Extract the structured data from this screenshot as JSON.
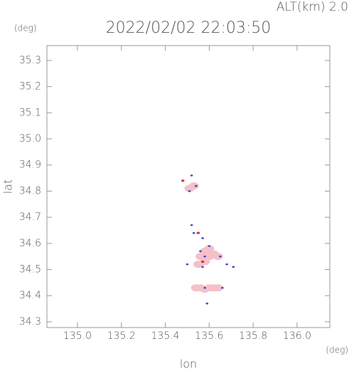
{
  "chart_data": {
    "type": "scatter",
    "title": "2022/02/02 22:03:50",
    "subtitle": "ALT(km) 2.0",
    "y_unit": "(deg)",
    "x_unit": "(deg)",
    "xlabel": "lon",
    "ylabel": "lat",
    "xlim": [
      134.861,
      136.149
    ],
    "ylim": [
      34.278,
      35.357
    ],
    "xticks": [
      {
        "value": 135.0,
        "label": "135.0"
      },
      135.2,
      135.4,
      135.6,
      135.8,
      {
        "value": 136.0,
        "label": "136.0"
      }
    ],
    "yticks": [
      34.3,
      34.4,
      34.5,
      34.6,
      34.7,
      34.8,
      34.9,
      {
        "value": 35.0,
        "label": "35.0"
      },
      35.1,
      35.2,
      35.3
    ],
    "series": [
      {
        "color": "#f5c0c8",
        "marker_size": 5,
        "x": [
          135.56,
          135.58,
          135.6,
          135.62,
          135.58,
          135.64,
          135.6,
          135.55,
          135.54,
          135.56,
          135.58,
          135.6,
          135.62,
          135.64,
          135.51,
          135.53
        ],
        "y": [
          34.55,
          34.57,
          34.58,
          34.56,
          34.53,
          34.55,
          34.55,
          34.52,
          34.43,
          34.43,
          34.425,
          34.43,
          34.43,
          34.43,
          34.81,
          34.82
        ]
      },
      {
        "color": "#4048d0",
        "marker_size": 1.3,
        "x": [
          135.52,
          135.51,
          135.54,
          135.52,
          135.57,
          135.56,
          135.58,
          135.65,
          135.68,
          135.71,
          135.5,
          135.66,
          135.58,
          135.59,
          135.53,
          135.57,
          135.6
        ],
        "y": [
          34.86,
          34.8,
          34.82,
          34.67,
          34.62,
          34.57,
          34.55,
          34.55,
          34.52,
          34.51,
          34.52,
          34.43,
          34.43,
          34.37,
          34.64,
          34.51,
          34.59
        ]
      },
      {
        "color": "#d83040",
        "marker_size": 1.6,
        "x": [
          135.48,
          135.55,
          135.57
        ],
        "y": [
          34.84,
          34.64,
          34.53
        ]
      }
    ]
  }
}
